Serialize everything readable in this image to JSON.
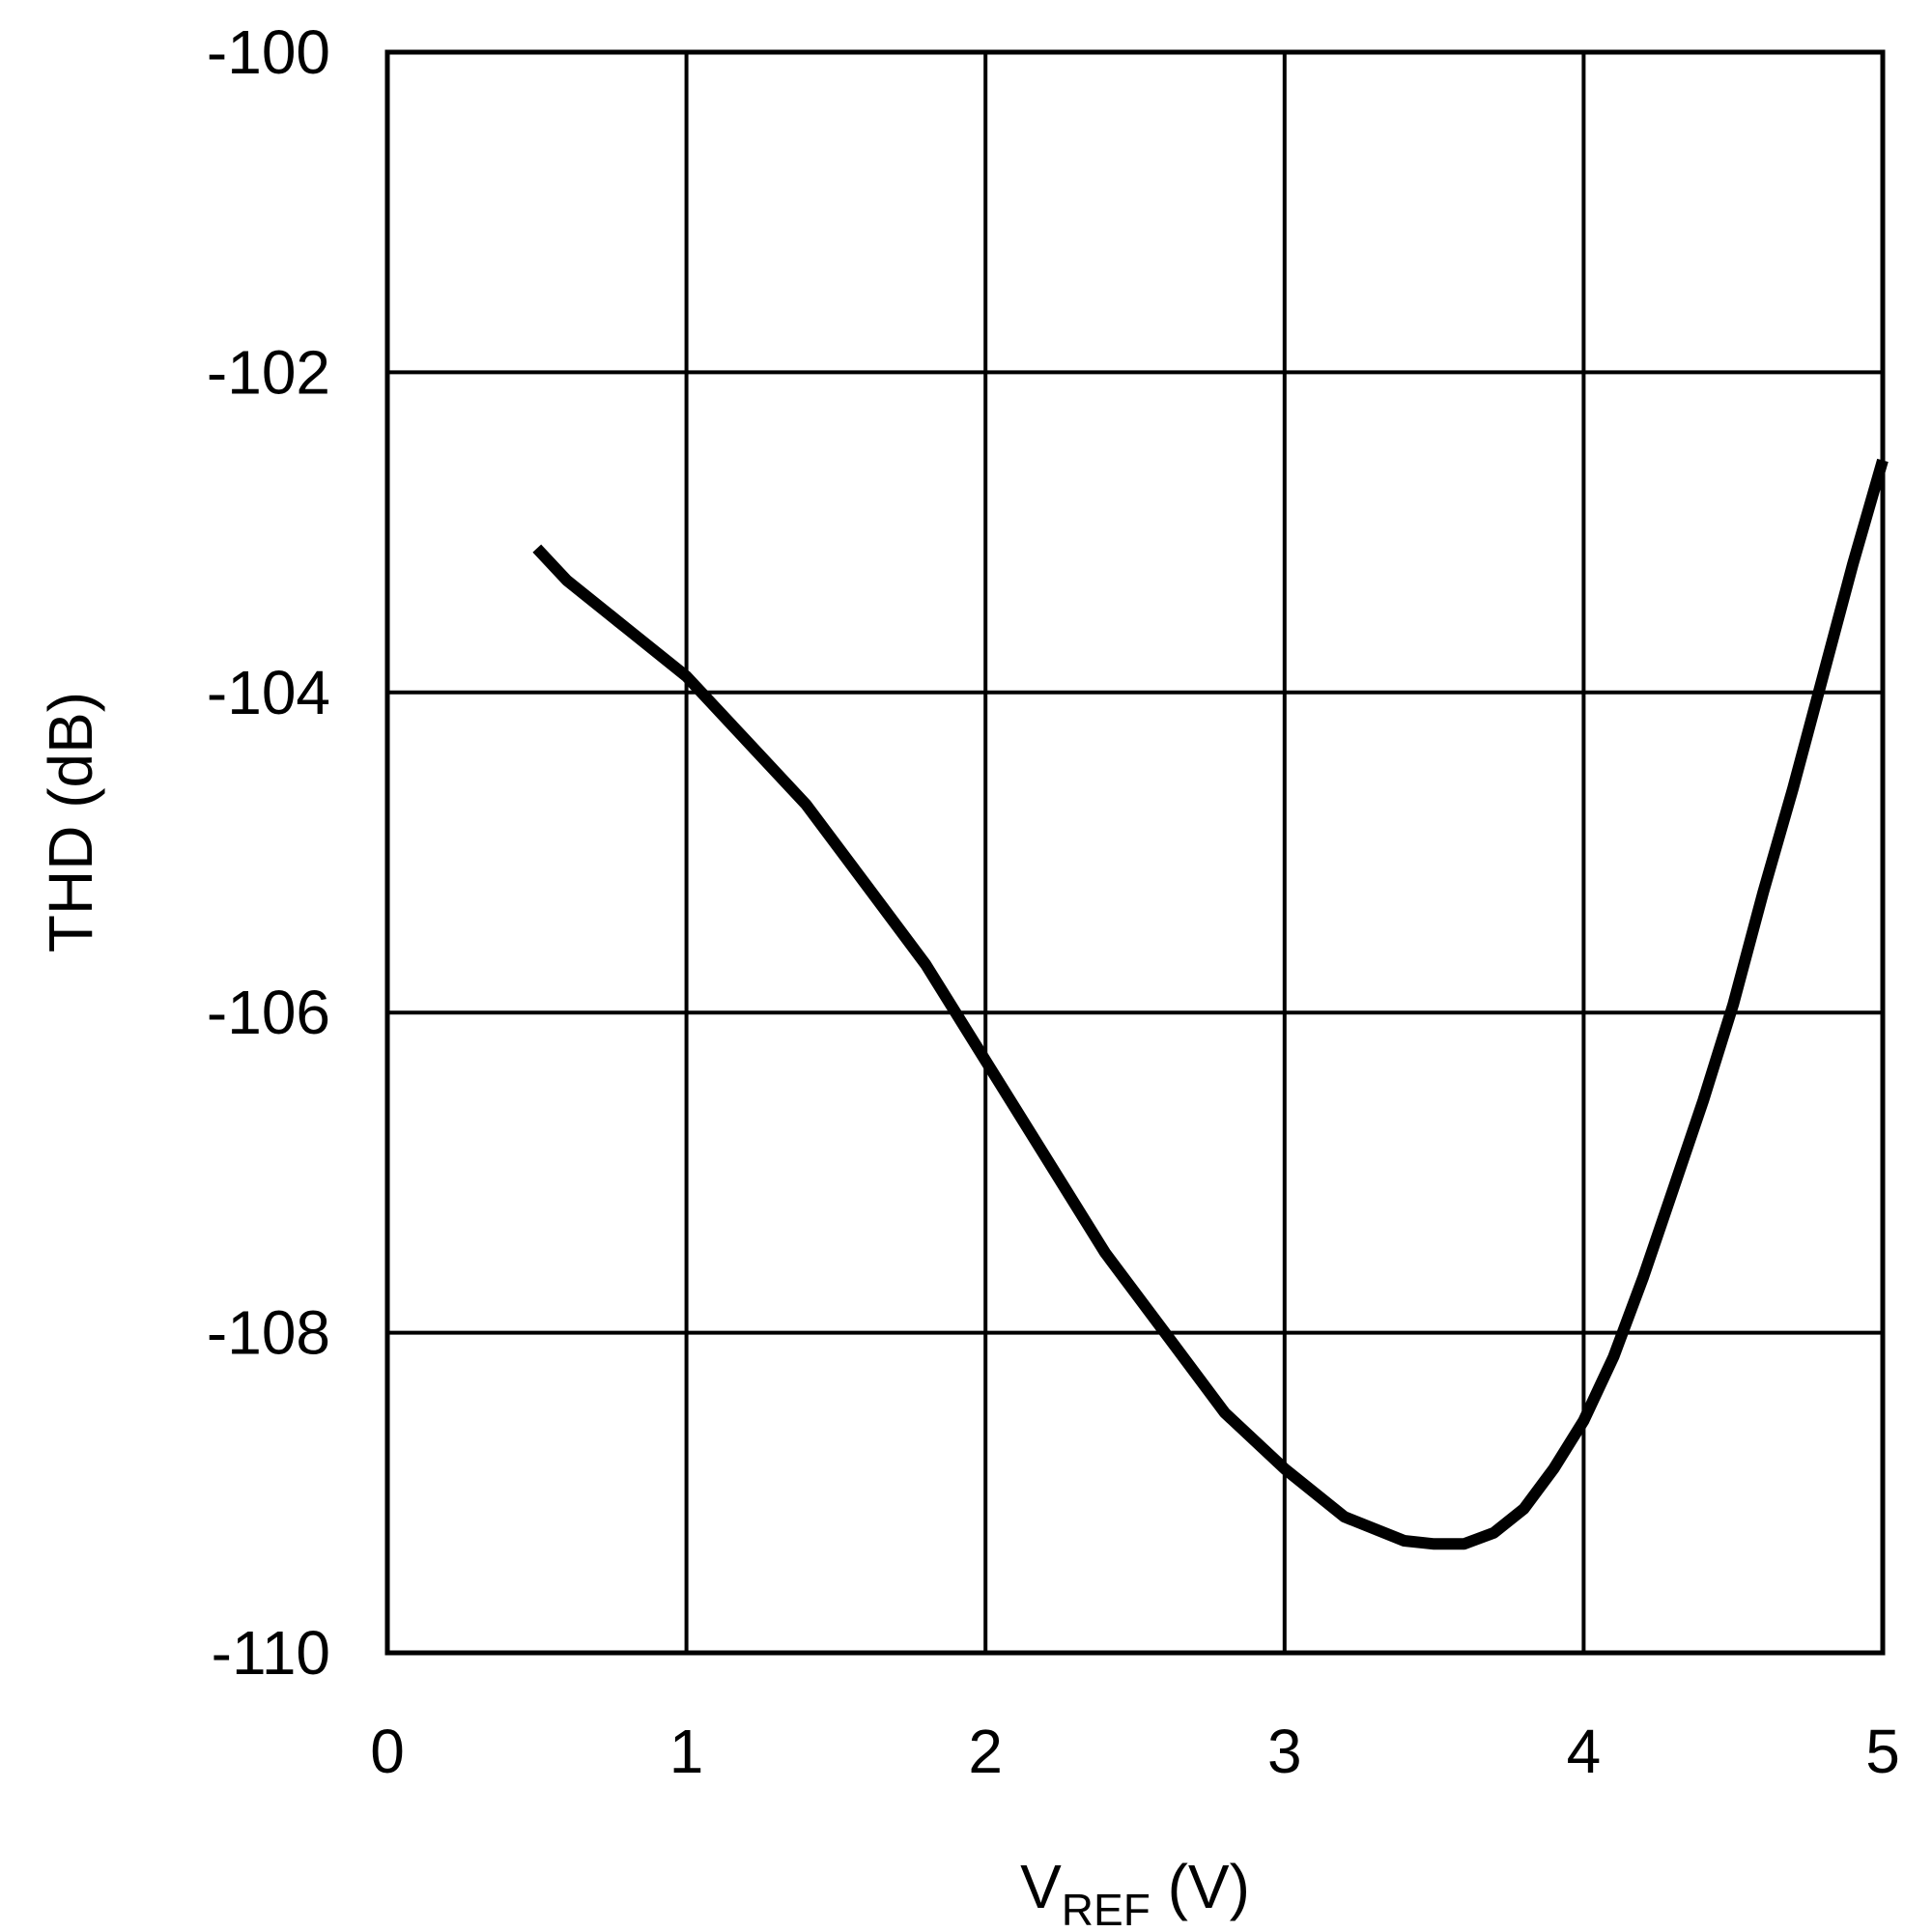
{
  "chart_data": {
    "type": "line",
    "xlabel": {
      "main": "V",
      "sub": "REF",
      "unit": " (V)"
    },
    "ylabel": "THD (dB)",
    "xlim": [
      0,
      5
    ],
    "ylim": [
      -110,
      -100
    ],
    "xticks": [
      "0",
      "1",
      "2",
      "3",
      "4",
      "5"
    ],
    "yticks": [
      "-100",
      "-102",
      "-104",
      "-106",
      "-108",
      "-110"
    ],
    "grid": true,
    "series": [
      {
        "color": "#000000",
        "x": [
          0.5,
          0.6,
          0.8,
          1.0,
          1.2,
          1.4,
          1.6,
          1.8,
          2.0,
          2.2,
          2.4,
          2.6,
          2.8,
          3.0,
          3.2,
          3.4,
          3.5,
          3.6,
          3.7,
          3.8,
          3.9,
          4.0,
          4.1,
          4.2,
          4.3,
          4.4,
          4.5,
          4.6,
          4.7,
          4.8,
          4.9,
          5.0
        ],
        "y": [
          -103.1,
          -103.3,
          -103.6,
          -103.9,
          -104.3,
          -104.7,
          -105.2,
          -105.7,
          -106.3,
          -106.9,
          -107.5,
          -108.0,
          -108.5,
          -108.85,
          -109.15,
          -109.3,
          -109.32,
          -109.32,
          -109.25,
          -109.1,
          -108.85,
          -108.55,
          -108.15,
          -107.65,
          -107.1,
          -106.55,
          -105.95,
          -105.25,
          -104.6,
          -103.9,
          -103.2,
          -102.55
        ]
      }
    ]
  }
}
